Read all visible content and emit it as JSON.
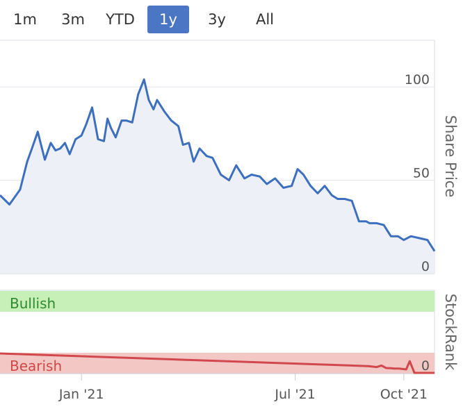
{
  "range_selector": {
    "buttons": [
      {
        "label": "1m",
        "active": false
      },
      {
        "label": "3m",
        "active": false
      },
      {
        "label": "YTD",
        "active": false
      },
      {
        "label": "1y",
        "active": true
      },
      {
        "label": "3y",
        "active": false
      },
      {
        "label": "All",
        "active": false
      }
    ]
  },
  "colors": {
    "price_line": "#3c6fbd",
    "area_fill": "#eef0f8",
    "active_button": "#4a76c4",
    "bullish_band": "#c7efb8",
    "bullish_text": "#2f8a2f",
    "bearish_band": "#f2c7c4",
    "bearish_text": "#d04848",
    "rank_line": "#d0474c"
  },
  "chart_data": [
    {
      "type": "area",
      "ylabel": "Share Price",
      "ylim": [
        0,
        125
      ],
      "yticks": [
        "0",
        "50",
        "100"
      ],
      "grid": true,
      "x_range": [
        "2020-10-24",
        "2021-10-27"
      ],
      "series": [
        {
          "x": [
            "2020-10-24",
            "2020-11-01",
            "2020-11-10",
            "2020-11-16",
            "2020-11-20",
            "2020-11-25",
            "2020-12-01",
            "2020-12-06",
            "2020-12-10",
            "2020-12-14",
            "2020-12-18",
            "2020-12-22",
            "2020-12-27",
            "2021-01-01",
            "2021-01-05",
            "2021-01-10",
            "2021-01-15",
            "2021-01-20",
            "2021-01-23",
            "2021-01-26",
            "2021-01-30",
            "2021-02-04",
            "2021-02-08",
            "2021-02-13",
            "2021-02-18",
            "2021-02-23",
            "2021-02-27",
            "2021-03-03",
            "2021-03-06",
            "2021-03-12",
            "2021-03-18",
            "2021-03-24",
            "2021-03-28",
            "2021-04-02",
            "2021-04-06",
            "2021-04-11",
            "2021-04-17",
            "2021-04-22",
            "2021-04-29",
            "2021-05-06",
            "2021-05-12",
            "2021-05-19",
            "2021-05-25",
            "2021-06-01",
            "2021-06-07",
            "2021-06-14",
            "2021-06-21",
            "2021-06-28",
            "2021-07-03",
            "2021-07-08",
            "2021-07-14",
            "2021-07-20",
            "2021-07-26",
            "2021-08-01",
            "2021-08-06",
            "2021-08-12",
            "2021-08-18",
            "2021-08-24",
            "2021-08-30",
            "2021-09-02",
            "2021-09-08",
            "2021-09-14",
            "2021-09-20",
            "2021-09-26",
            "2021-10-01",
            "2021-10-07",
            "2021-10-14",
            "2021-10-21",
            "2021-10-27"
          ],
          "values": [
            42,
            37,
            45,
            60,
            67,
            76,
            61,
            70,
            66,
            67,
            70,
            64,
            72,
            74,
            80,
            89,
            72,
            71,
            83,
            78,
            73,
            82,
            82,
            81,
            96,
            104,
            93,
            88,
            93,
            87,
            82,
            79,
            69,
            70,
            60,
            67,
            63,
            62,
            53,
            50,
            58,
            51,
            53,
            52,
            48,
            51,
            46,
            47,
            56,
            53,
            47,
            43,
            47,
            42,
            40,
            40,
            39,
            28,
            28,
            27,
            27,
            26,
            20,
            20,
            18,
            20,
            19,
            18,
            12
          ],
          "name": ""
        }
      ]
    },
    {
      "type": "line",
      "ylabel": "StockRank",
      "yticks": [
        "0"
      ],
      "bands": [
        "Bullish",
        "Bearish"
      ],
      "xticks": [
        "Jan '21",
        "Jul '21",
        "Oct '21"
      ],
      "series": [
        {
          "x": [
            "2020-10-24",
            "2021-09-01",
            "2021-09-08",
            "2021-09-12",
            "2021-09-16",
            "2021-09-20",
            "2021-09-23",
            "2021-09-27",
            "2021-10-03",
            "2021-10-06",
            "2021-10-10",
            "2021-10-27"
          ],
          "values": [
            10,
            3.5,
            3,
            3.8,
            2.5,
            2.4,
            2.2,
            2.2,
            1.8,
            6,
            0,
            0
          ]
        }
      ]
    }
  ]
}
